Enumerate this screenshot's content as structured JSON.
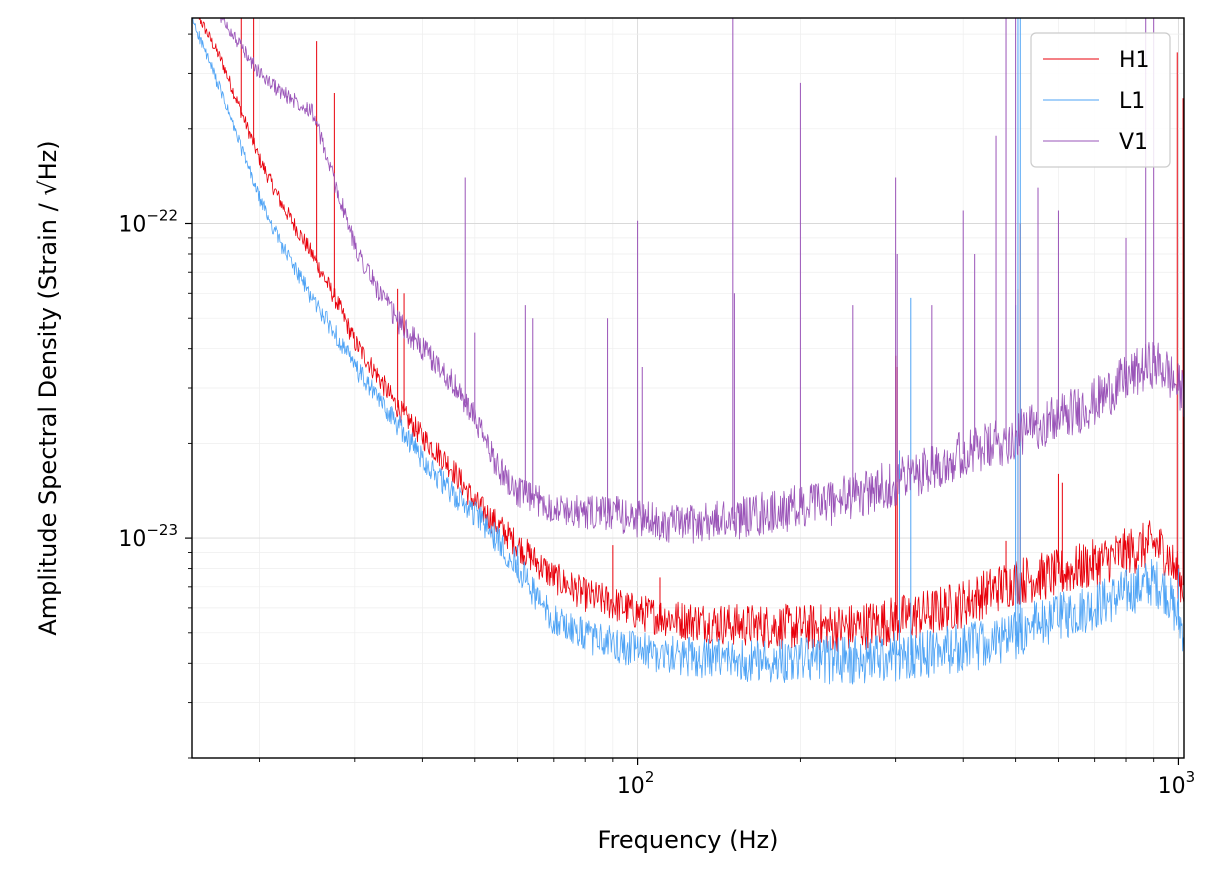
{
  "chart_data": {
    "type": "line",
    "title": "",
    "xlabel": "Frequency (Hz)",
    "ylabel": "Amplitude Spectral Density (Strain / √Hz)",
    "xscale": "log",
    "yscale": "log",
    "xlim": [
      15,
      1024
    ],
    "ylim": [
      2e-24,
      4.5e-22
    ],
    "x_ticks": [
      {
        "value": 100,
        "base": "10",
        "exp": "2"
      },
      {
        "value": 1000,
        "base": "10",
        "exp": "3"
      }
    ],
    "y_ticks": [
      {
        "value": 1e-23,
        "base": "10",
        "exp": "−23"
      },
      {
        "value": 1e-22,
        "base": "10",
        "exp": "−22"
      }
    ],
    "grid": "on (major and minor)",
    "legend": "top-right",
    "series": [
      {
        "name": "H1",
        "color": "#e8000b",
        "points": [
          [
            15,
            5e-22
          ],
          [
            17,
            3.3e-22
          ],
          [
            20,
            1.6e-22
          ],
          [
            22,
            1.15e-22
          ],
          [
            25,
            8e-23
          ],
          [
            28,
            5.5e-23
          ],
          [
            30,
            4.2e-23
          ],
          [
            33,
            3.3e-23
          ],
          [
            36,
            2.6e-23
          ],
          [
            40,
            2.1e-23
          ],
          [
            45,
            1.7e-23
          ],
          [
            50,
            1.3e-23
          ],
          [
            60,
            9.5e-24
          ],
          [
            70,
            7.5e-24
          ],
          [
            80,
            6.6e-24
          ],
          [
            90,
            6.2e-24
          ],
          [
            100,
            5.8e-24
          ],
          [
            120,
            5.5e-24
          ],
          [
            150,
            5.3e-24
          ],
          [
            200,
            5.2e-24
          ],
          [
            250,
            5.2e-24
          ],
          [
            300,
            5.5e-24
          ],
          [
            350,
            5.8e-24
          ],
          [
            400,
            6.2e-24
          ],
          [
            450,
            6.8e-24
          ],
          [
            500,
            7.3e-24
          ],
          [
            550,
            7.5e-24
          ],
          [
            600,
            7.7e-24
          ],
          [
            700,
            8.3e-24
          ],
          [
            800,
            9e-24
          ],
          [
            900,
            9.6e-24
          ],
          [
            950,
            9e-24
          ],
          [
            1000,
            7.5e-24
          ],
          [
            1024,
            7e-24
          ]
        ],
        "peaks": [
          [
            18.5,
            5e-22
          ],
          [
            19.5,
            4.5e-22
          ],
          [
            25.5,
            3.8e-22
          ],
          [
            27.5,
            2.6e-22
          ],
          [
            36,
            6.2e-23
          ],
          [
            37,
            6e-23
          ],
          [
            90,
            9.5e-24
          ],
          [
            110,
            7.5e-24
          ],
          [
            300,
            3.8e-23
          ],
          [
            302,
            3.5e-23
          ],
          [
            480,
            9.8e-24
          ],
          [
            505,
            6.2e-23
          ],
          [
            510,
            1e-22
          ],
          [
            600,
            1.6e-23
          ],
          [
            610,
            1.5e-23
          ],
          [
            880,
            1.1e-23
          ],
          [
            995,
            3.5e-22
          ],
          [
            1020,
            2.5e-22
          ]
        ]
      },
      {
        "name": "L1",
        "color": "#4ea3f5",
        "points": [
          [
            15,
            4.5e-22
          ],
          [
            17,
            2.6e-22
          ],
          [
            20,
            1.2e-22
          ],
          [
            22,
            8.5e-23
          ],
          [
            25,
            5.8e-23
          ],
          [
            28,
            4.3e-23
          ],
          [
            30,
            3.5e-23
          ],
          [
            33,
            2.8e-23
          ],
          [
            36,
            2.3e-23
          ],
          [
            40,
            1.8e-23
          ],
          [
            45,
            1.4e-23
          ],
          [
            50,
            1.2e-23
          ],
          [
            60,
            8.2e-24
          ],
          [
            65,
            6.5e-24
          ],
          [
            70,
            5.5e-24
          ],
          [
            80,
            4.9e-24
          ],
          [
            90,
            4.6e-24
          ],
          [
            100,
            4.4e-24
          ],
          [
            120,
            4.2e-24
          ],
          [
            150,
            4.1e-24
          ],
          [
            200,
            4.1e-24
          ],
          [
            250,
            4.1e-24
          ],
          [
            300,
            4.2e-24
          ],
          [
            350,
            4.3e-24
          ],
          [
            400,
            4.5e-24
          ],
          [
            450,
            4.6e-24
          ],
          [
            500,
            4.9e-24
          ],
          [
            550,
            5.4e-24
          ],
          [
            600,
            5.6e-24
          ],
          [
            700,
            6.1e-24
          ],
          [
            800,
            6.7e-24
          ],
          [
            900,
            7.3e-24
          ],
          [
            950,
            6.8e-24
          ],
          [
            1000,
            5.5e-24
          ],
          [
            1024,
            5.1e-24
          ]
        ],
        "peaks": [
          [
            60,
            9.5e-24
          ],
          [
            305,
            1.9e-23
          ],
          [
            320,
            5.8e-23
          ],
          [
            500,
            5.5e-23
          ],
          [
            505,
            4.5e-22
          ],
          [
            510,
            6e-22
          ],
          [
            1000,
            8e-24
          ]
        ]
      },
      {
        "name": "V1",
        "color": "#9a54b8",
        "points": [
          [
            15,
            6e-22
          ],
          [
            17,
            4.5e-22
          ],
          [
            20,
            3e-22
          ],
          [
            22,
            2.6e-22
          ],
          [
            25,
            2.3e-22
          ],
          [
            27,
            1.5e-22
          ],
          [
            30,
            8.5e-23
          ],
          [
            33,
            6.2e-23
          ],
          [
            36,
            4.9e-23
          ],
          [
            40,
            4e-23
          ],
          [
            45,
            3.2e-23
          ],
          [
            50,
            2.4e-23
          ],
          [
            55,
            1.7e-23
          ],
          [
            60,
            1.4e-23
          ],
          [
            70,
            1.25e-23
          ],
          [
            80,
            1.2e-23
          ],
          [
            90,
            1.2e-23
          ],
          [
            100,
            1.15e-23
          ],
          [
            120,
            1.1e-23
          ],
          [
            150,
            1.15e-23
          ],
          [
            200,
            1.25e-23
          ],
          [
            250,
            1.35e-23
          ],
          [
            300,
            1.5e-23
          ],
          [
            350,
            1.7e-23
          ],
          [
            400,
            1.85e-23
          ],
          [
            450,
            1.95e-23
          ],
          [
            500,
            2.1e-23
          ],
          [
            550,
            2.3e-23
          ],
          [
            600,
            2.4e-23
          ],
          [
            700,
            2.7e-23
          ],
          [
            800,
            3.2e-23
          ],
          [
            900,
            3.6e-23
          ],
          [
            950,
            3.4e-23
          ],
          [
            1000,
            3e-23
          ],
          [
            1024,
            2.9e-23
          ]
        ],
        "peaks": [
          [
            22.5,
            2.5e-22
          ],
          [
            24.5,
            2.4e-22
          ],
          [
            48,
            1.4e-22
          ],
          [
            50,
            4.5e-23
          ],
          [
            62,
            5.5e-23
          ],
          [
            64,
            5e-23
          ],
          [
            88,
            5e-23
          ],
          [
            100,
            1.02e-22
          ],
          [
            102,
            3.5e-23
          ],
          [
            150,
            4.5e-22
          ],
          [
            151,
            6e-23
          ],
          [
            200,
            2.8e-22
          ],
          [
            250,
            5.5e-23
          ],
          [
            300,
            1.4e-22
          ],
          [
            302,
            8e-23
          ],
          [
            350,
            5.5e-23
          ],
          [
            400,
            1.1e-22
          ],
          [
            420,
            8e-23
          ],
          [
            460,
            1.9e-22
          ],
          [
            480,
            4.5e-22
          ],
          [
            500,
            5e-22
          ],
          [
            550,
            1.3e-22
          ],
          [
            600,
            1.1e-22
          ],
          [
            800,
            9e-23
          ],
          [
            870,
            5e-22
          ],
          [
            900,
            6e-22
          ]
        ]
      }
    ]
  }
}
